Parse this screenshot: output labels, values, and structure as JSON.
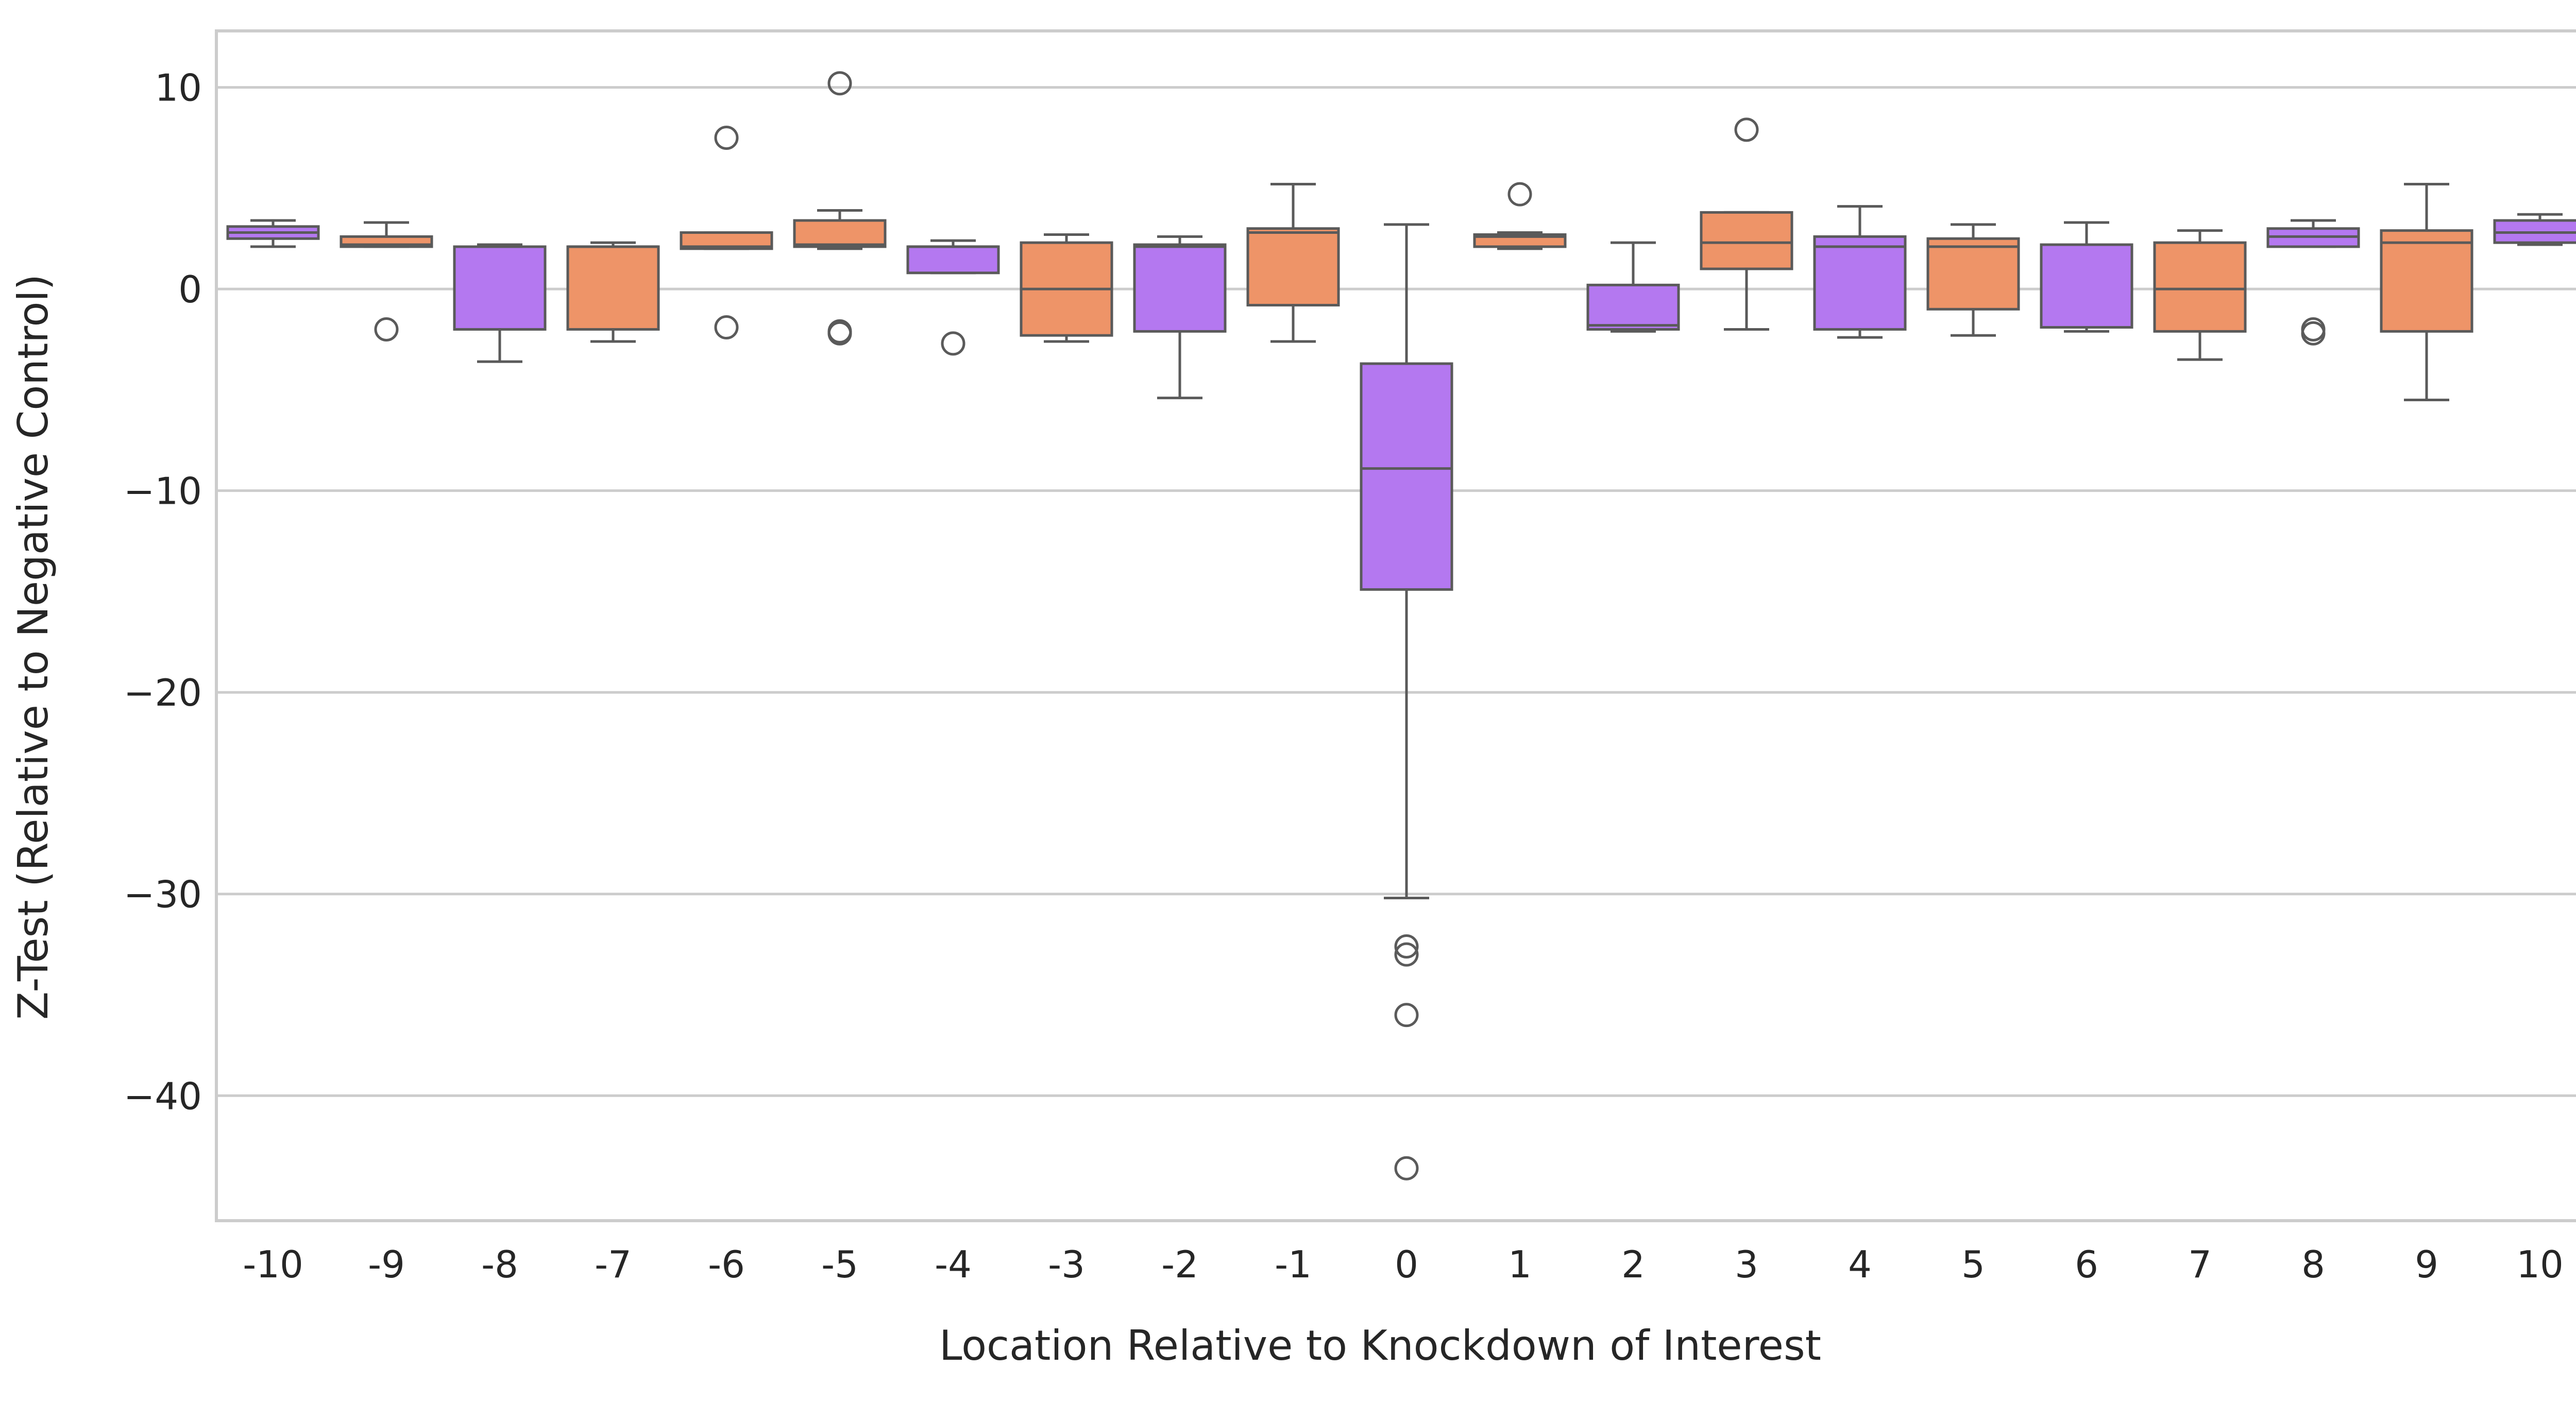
{
  "chart_data": {
    "type": "box",
    "title": "",
    "xlabel": "Location Relative to Knockdown of Interest",
    "ylabel": "Z-Test (Relative to Negative Control)",
    "ylim": [
      -46.2,
      12.8
    ],
    "yticks": [
      10,
      0,
      -10,
      -20,
      -30,
      -40
    ],
    "ytick_labels": [
      "10",
      "0",
      "−10",
      "−20",
      "−30",
      "−40"
    ],
    "grid": "horizontal",
    "legend": "none",
    "colors": {
      "purple": "#b478f0",
      "orange": "#ee9468",
      "line": "#5a5a5a",
      "grid": "#cccccc",
      "frame": "#cccccc"
    },
    "categories": [
      "-10",
      "-9",
      "-8",
      "-7",
      "-6",
      "-5",
      "-4",
      "-3",
      "-2",
      "-1",
      "0",
      "1",
      "2",
      "3",
      "4",
      "5",
      "6",
      "7",
      "8",
      "9",
      "10"
    ],
    "boxes": [
      {
        "x": "-10",
        "color": "purple",
        "whislo": 2.1,
        "q1": 2.5,
        "med": 2.8,
        "q3": 3.1,
        "whishi": 3.4,
        "fliers": []
      },
      {
        "x": "-9",
        "color": "orange",
        "whislo": 2.1,
        "q1": 2.1,
        "med": 2.2,
        "q3": 2.6,
        "whishi": 3.3,
        "fliers": [
          -2.0
        ]
      },
      {
        "x": "-8",
        "color": "purple",
        "whislo": -3.6,
        "q1": -2.0,
        "med": -2.0,
        "q3": 2.1,
        "whishi": 2.2,
        "fliers": []
      },
      {
        "x": "-7",
        "color": "orange",
        "whislo": -2.6,
        "q1": -2.0,
        "med": 2.1,
        "q3": 2.1,
        "whishi": 2.3,
        "fliers": []
      },
      {
        "x": "-6",
        "color": "orange",
        "whislo": 2.0,
        "q1": 2.0,
        "med": 2.1,
        "q3": 2.8,
        "whishi": 2.8,
        "fliers": [
          7.5,
          -1.9
        ]
      },
      {
        "x": "-5",
        "color": "orange",
        "whislo": 2.0,
        "q1": 2.1,
        "med": 2.2,
        "q3": 3.4,
        "whishi": 3.9,
        "fliers": [
          10.2,
          -2.1,
          -2.2
        ]
      },
      {
        "x": "-4",
        "color": "purple",
        "whislo": 0.8,
        "q1": 0.8,
        "med": 2.1,
        "q3": 2.1,
        "whishi": 2.4,
        "fliers": [
          -2.7
        ]
      },
      {
        "x": "-3",
        "color": "orange",
        "whislo": -2.6,
        "q1": -2.3,
        "med": 0.0,
        "q3": 2.3,
        "whishi": 2.7,
        "fliers": []
      },
      {
        "x": "-2",
        "color": "purple",
        "whislo": -5.4,
        "q1": -2.1,
        "med": 2.1,
        "q3": 2.2,
        "whishi": 2.6,
        "fliers": []
      },
      {
        "x": "-1",
        "color": "orange",
        "whislo": -2.6,
        "q1": -0.8,
        "med": 2.8,
        "q3": 3.0,
        "whishi": 5.2,
        "fliers": []
      },
      {
        "x": "0",
        "color": "purple",
        "whislo": -30.2,
        "q1": -14.9,
        "med": -8.9,
        "q3": -3.7,
        "whishi": 3.2,
        "fliers": [
          -32.6,
          -33.0,
          -36.0,
          -43.6
        ]
      },
      {
        "x": "1",
        "color": "orange",
        "whislo": 2.0,
        "q1": 2.1,
        "med": 2.6,
        "q3": 2.7,
        "whishi": 2.8,
        "fliers": [
          4.7
        ]
      },
      {
        "x": "2",
        "color": "purple",
        "whislo": -2.1,
        "q1": -2.0,
        "med": -1.8,
        "q3": 0.2,
        "whishi": 2.3,
        "fliers": []
      },
      {
        "x": "3",
        "color": "orange",
        "whislo": -2.0,
        "q1": 1.0,
        "med": 2.3,
        "q3": 3.8,
        "whishi": 3.8,
        "fliers": [
          7.9
        ]
      },
      {
        "x": "4",
        "color": "purple",
        "whislo": -2.4,
        "q1": -2.0,
        "med": 2.1,
        "q3": 2.6,
        "whishi": 4.1,
        "fliers": []
      },
      {
        "x": "5",
        "color": "orange",
        "whislo": -2.3,
        "q1": -1.0,
        "med": 2.1,
        "q3": 2.5,
        "whishi": 3.2,
        "fliers": []
      },
      {
        "x": "6",
        "color": "purple",
        "whislo": -2.1,
        "q1": -1.9,
        "med": -1.9,
        "q3": 2.2,
        "whishi": 3.3,
        "fliers": []
      },
      {
        "x": "7",
        "color": "orange",
        "whislo": -3.5,
        "q1": -2.1,
        "med": 0.0,
        "q3": 2.3,
        "whishi": 2.9,
        "fliers": []
      },
      {
        "x": "8",
        "color": "purple",
        "whislo": 2.1,
        "q1": 2.1,
        "med": 2.6,
        "q3": 3.0,
        "whishi": 3.4,
        "fliers": [
          -2.0,
          -2.2
        ]
      },
      {
        "x": "9",
        "color": "orange",
        "whislo": -5.5,
        "q1": -2.1,
        "med": 2.3,
        "q3": 2.9,
        "whishi": 5.2,
        "fliers": []
      },
      {
        "x": "10",
        "color": "purple",
        "whislo": 2.2,
        "q1": 2.3,
        "med": 2.8,
        "q3": 3.4,
        "whishi": 3.7,
        "fliers": []
      }
    ]
  }
}
